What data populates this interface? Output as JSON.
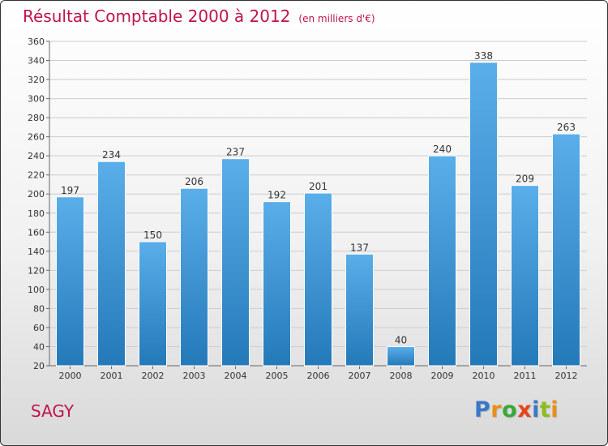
{
  "header": {
    "title": "Résultat Comptable 2000 à 2012",
    "subtitle": "(en milliers d'€)"
  },
  "footer": {
    "town": "SAGY",
    "brand_letters": [
      "P",
      "r",
      "o",
      "x",
      "i",
      "t",
      "i"
    ]
  },
  "colors": {
    "title": "#c0144a",
    "bar_top": "#5aaee9",
    "bar_bottom": "#2479b9",
    "grid": "#cccccc",
    "brand": [
      "#3a78c6",
      "#e8901a",
      "#39a838",
      "#e8431a",
      "#3a78c6",
      "#8dbd1c",
      "#e8901a"
    ]
  },
  "chart_data": {
    "type": "bar",
    "title": "Résultat Comptable 2000 à 2012",
    "units": "(en milliers d'€)",
    "categories": [
      "2000",
      "2001",
      "2002",
      "2003",
      "2004",
      "2005",
      "2006",
      "2007",
      "2008",
      "2009",
      "2010",
      "2011",
      "2012"
    ],
    "values": [
      197,
      234,
      150,
      206,
      237,
      192,
      201,
      137,
      40,
      240,
      338,
      209,
      263
    ],
    "xlabel": "",
    "ylabel": "",
    "ylim": [
      20,
      360
    ],
    "yticks": [
      20,
      40,
      60,
      80,
      100,
      120,
      140,
      160,
      180,
      200,
      220,
      240,
      260,
      280,
      300,
      320,
      340,
      360
    ],
    "grid": true,
    "data_labels": true
  }
}
